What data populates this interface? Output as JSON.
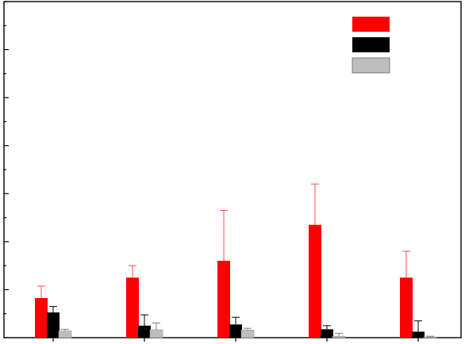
{
  "chart_data": {
    "type": "bar",
    "title": "",
    "xlabel": "",
    "ylabel": "",
    "categories": [
      "",
      "",
      "",
      "",
      ""
    ],
    "ylim": [
      0,
      14
    ],
    "grid": false,
    "legend": "top-right",
    "series": [
      {
        "color": "#ff0000",
        "values": [
          1.65,
          2.5,
          3.2,
          4.7,
          2.5
        ],
        "errors": [
          0.5,
          0.5,
          2.1,
          1.7,
          1.1
        ]
      },
      {
        "color": "#000000",
        "values": [
          1.05,
          0.5,
          0.55,
          0.35,
          0.25
        ],
        "errors": [
          0.25,
          0.45,
          0.3,
          0.15,
          0.45
        ]
      },
      {
        "color": "#bebebe",
        "values": [
          0.28,
          0.33,
          0.32,
          0.06,
          0.03
        ],
        "errors": [
          0.07,
          0.28,
          0.07,
          0.12,
          0.03
        ]
      }
    ]
  }
}
